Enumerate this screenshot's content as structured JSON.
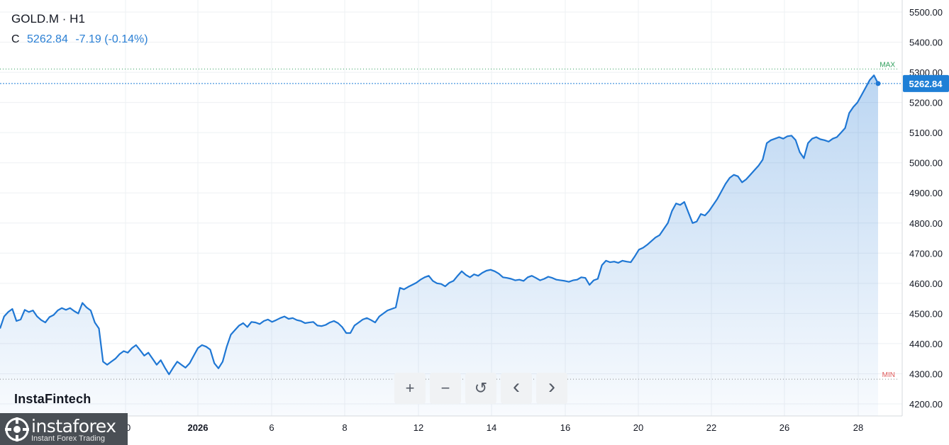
{
  "header": {
    "symbol": "GOLD.M · H1",
    "close_label": "C",
    "close_value": "5262.84",
    "change": "-7.19 (-0.14%)"
  },
  "brand": "InstaFintech",
  "logo": {
    "name": "instaforex",
    "tagline": "Instant Forex Trading"
  },
  "toolbar": [
    {
      "icon": "plus-icon",
      "glyph": "+"
    },
    {
      "icon": "minus-icon",
      "glyph": "−"
    },
    {
      "icon": "reset-icon",
      "glyph": "↺"
    },
    {
      "icon": "chevron-left-icon",
      "glyph": "‹"
    },
    {
      "icon": "chevron-right-icon",
      "glyph": "›"
    }
  ],
  "colors": {
    "line": "#1f77d4",
    "max": "#2e9e5b",
    "min": "#e05a5a",
    "price_badge": "#1e7fd6"
  },
  "chart_data": {
    "type": "area",
    "title": "",
    "xlabel": "",
    "ylabel": "",
    "ylim": [
      4160,
      5540
    ],
    "y_ticks": [
      "4200.00",
      "4300.00",
      "4400.00",
      "4500.00",
      "4600.00",
      "4700.00",
      "4800.00",
      "4900.00",
      "5000.00",
      "5100.00",
      "5200.00",
      "5300.00",
      "5400.00",
      "5500.00"
    ],
    "x_ticks": [
      "30",
      "2026",
      "6",
      "8",
      "12",
      "14",
      "16",
      "20",
      "22",
      "26",
      "28"
    ],
    "last_price": 5262.84,
    "last_price_label": "5262.84",
    "max_label": "MAX",
    "max_value": 5311,
    "min_label": "MIN",
    "min_value": 4282,
    "series": [
      {
        "values": [
          4450,
          4490,
          4505,
          4515,
          4475,
          4480,
          4512,
          4505,
          4510,
          4490,
          4478,
          4470,
          4488,
          4495,
          4510,
          4518,
          4512,
          4518,
          4508,
          4500,
          4535,
          4520,
          4510,
          4470,
          4450,
          4340,
          4330,
          4340,
          4350,
          4365,
          4375,
          4370,
          4385,
          4395,
          4378,
          4360,
          4370,
          4350,
          4330,
          4345,
          4320,
          4298,
          4320,
          4340,
          4330,
          4320,
          4335,
          4360,
          4385,
          4395,
          4390,
          4380,
          4335,
          4318,
          4340,
          4390,
          4430,
          4445,
          4460,
          4468,
          4455,
          4472,
          4470,
          4465,
          4475,
          4480,
          4472,
          4478,
          4485,
          4490,
          4482,
          4485,
          4478,
          4475,
          4468,
          4470,
          4472,
          4460,
          4458,
          4462,
          4470,
          4475,
          4468,
          4455,
          4435,
          4435,
          4460,
          4470,
          4480,
          4485,
          4478,
          4470,
          4490,
          4500,
          4510,
          4515,
          4520,
          4585,
          4580,
          4588,
          4595,
          4602,
          4612,
          4620,
          4625,
          4608,
          4600,
          4598,
          4590,
          4602,
          4608,
          4625,
          4640,
          4628,
          4620,
          4630,
          4625,
          4635,
          4642,
          4645,
          4640,
          4632,
          4620,
          4618,
          4615,
          4610,
          4612,
          4608,
          4620,
          4625,
          4618,
          4610,
          4615,
          4622,
          4618,
          4612,
          4610,
          4608,
          4605,
          4610,
          4612,
          4620,
          4618,
          4595,
          4610,
          4615,
          4660,
          4675,
          4670,
          4672,
          4668,
          4675,
          4672,
          4670,
          4690,
          4712,
          4718,
          4728,
          4740,
          4752,
          4760,
          4780,
          4800,
          4840,
          4865,
          4860,
          4870,
          4835,
          4800,
          4805,
          4830,
          4825,
          4840,
          4860,
          4880,
          4905,
          4930,
          4950,
          4960,
          4955,
          4935,
          4945,
          4960,
          4975,
          4990,
          5010,
          5065,
          5075,
          5080,
          5085,
          5080,
          5088,
          5090,
          5075,
          5035,
          5015,
          5065,
          5080,
          5085,
          5078,
          5075,
          5070,
          5080,
          5085,
          5100,
          5115,
          5165,
          5185,
          5200,
          5225,
          5250,
          5275,
          5290,
          5262.84
        ]
      }
    ]
  }
}
